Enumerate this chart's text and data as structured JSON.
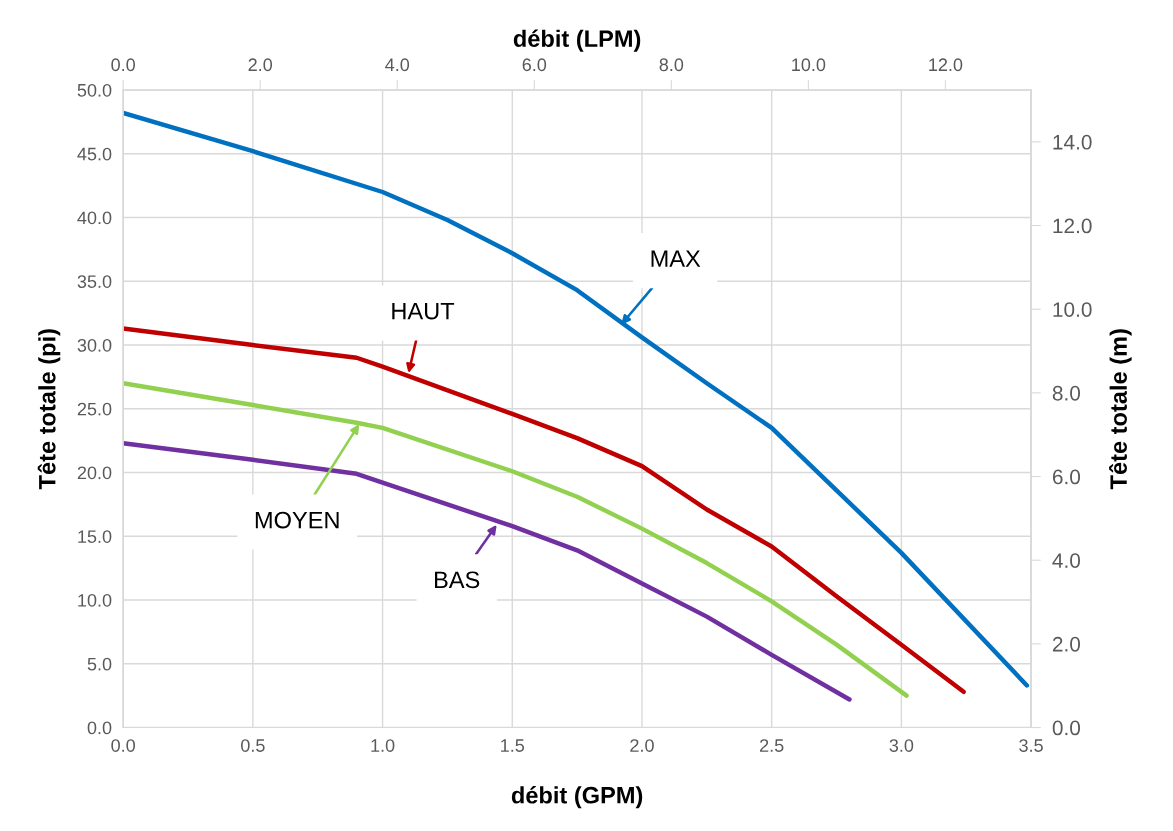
{
  "chart_data": {
    "type": "line",
    "xlabel": "débit (GPM)",
    "ylabel": "Tête totale (pi)",
    "y2label": "Tête totale (m)",
    "x2label": "débit (LPM)",
    "series": [
      {
        "color": "#0070c0",
        "x": [
          0,
          0.5,
          1.0,
          1.25,
          1.5,
          1.75,
          2.0,
          2.25,
          2.5,
          2.75,
          3.0,
          3.484
        ],
        "values": [
          48.2,
          45.2,
          42.0,
          39.8,
          37.2,
          34.3,
          30.6,
          27.0,
          23.5,
          18.6,
          13.7,
          3.3
        ]
      },
      {
        "color": "#c00000",
        "x": [
          0,
          0.5,
          0.9,
          1.0,
          1.5,
          1.75,
          2.0,
          2.25,
          2.5,
          2.75,
          3.0,
          3.24
        ],
        "values": [
          31.3,
          30.0,
          29.0,
          28.3,
          24.6,
          22.7,
          20.5,
          17.1,
          14.2,
          10.3,
          6.5,
          2.8
        ]
      },
      {
        "color": "#92d050",
        "x": [
          0,
          0.5,
          0.9,
          1.0,
          1.5,
          1.75,
          2.0,
          2.25,
          2.5,
          2.75,
          3.02
        ],
        "values": [
          27.0,
          25.3,
          23.9,
          23.5,
          20.1,
          18.1,
          15.6,
          12.9,
          9.9,
          6.5,
          2.5
        ]
      },
      {
        "color": "#7030a0",
        "x": [
          0,
          0.5,
          0.9,
          1.0,
          1.5,
          1.75,
          2.0,
          2.25,
          2.5,
          2.8
        ],
        "values": [
          22.3,
          21.0,
          19.9,
          19.2,
          15.8,
          13.9,
          11.3,
          8.7,
          5.7,
          2.2
        ]
      }
    ],
    "annotations": [
      {
        "text": "MAX",
        "x": 1.92,
        "y": 31.6
      },
      {
        "text": "HAUT",
        "x": 1.1,
        "y": 27.8
      },
      {
        "text": "MOYEN",
        "x": 0.91,
        "y": 23.8
      },
      {
        "text": "BAS",
        "x": 1.44,
        "y": 15.9
      }
    ],
    "xlim": [
      0,
      3.5
    ],
    "xticks": [
      {
        "value": 0,
        "label": "0.0"
      },
      {
        "value": 0.5,
        "label": "0.5"
      },
      {
        "value": 1,
        "label": "1.0"
      },
      {
        "value": 1.5,
        "label": "1.5"
      },
      {
        "value": 2,
        "label": "2.0"
      },
      {
        "value": 2.5,
        "label": "2.5"
      },
      {
        "value": 3,
        "label": "3.0"
      },
      {
        "value": 3.5,
        "label": "3.5"
      }
    ],
    "ylim": [
      0,
      50
    ],
    "yticks": [
      {
        "value": 0,
        "label": "0.0"
      },
      {
        "value": 5,
        "label": "5.0"
      },
      {
        "value": 10,
        "label": "10.0"
      },
      {
        "value": 15,
        "label": "15.0"
      },
      {
        "value": 20,
        "label": "20.0"
      },
      {
        "value": 25,
        "label": "25.0"
      },
      {
        "value": 30,
        "label": "30.0"
      },
      {
        "value": 35,
        "label": "35.0"
      },
      {
        "value": 40,
        "label": "40.0"
      },
      {
        "value": 45,
        "label": "45.0"
      },
      {
        "value": 50,
        "label": "50.0"
      }
    ],
    "y2lim": [
      0,
      15.24
    ],
    "y2ticks": [
      {
        "value": 0,
        "label": "0.0"
      },
      {
        "value": 2,
        "label": "2.0"
      },
      {
        "value": 4,
        "label": "4.0"
      },
      {
        "value": 6,
        "label": "6.0"
      },
      {
        "value": 8,
        "label": "8.0"
      },
      {
        "value": 10,
        "label": "10.0"
      },
      {
        "value": 12,
        "label": "12.0"
      },
      {
        "value": 14,
        "label": "14.0"
      }
    ],
    "x2lim": [
      0,
      13.25
    ],
    "x2ticks": [
      {
        "value": 0,
        "label": "0.0"
      },
      {
        "value": 2,
        "label": "2.0"
      },
      {
        "value": 4,
        "label": "4.0"
      },
      {
        "value": 6,
        "label": "6.0"
      },
      {
        "value": 8,
        "label": "8.0"
      },
      {
        "value": 10,
        "label": "10.0"
      },
      {
        "value": 12,
        "label": "12.0"
      }
    ],
    "grid": true,
    "legend": false,
    "marker": "none",
    "line_style": "solid"
  }
}
